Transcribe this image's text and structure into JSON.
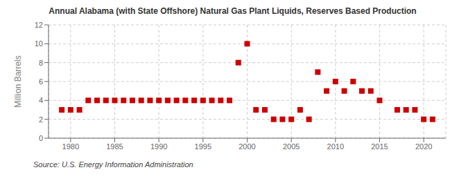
{
  "chart_data": {
    "type": "scatter",
    "title": "Annual Alabama (with State Offshore) Natural Gas Plant Liquids, Reserves Based Production",
    "y_label": "Million Barrels",
    "annotations": [
      "Source: U.S. Energy Information Administration"
    ],
    "x": [
      1979,
      1980,
      1981,
      1982,
      1983,
      1984,
      1985,
      1986,
      1987,
      1988,
      1989,
      1990,
      1991,
      1992,
      1993,
      1994,
      1995,
      1996,
      1997,
      1998,
      1999,
      2000,
      2001,
      2002,
      2003,
      2004,
      2005,
      2006,
      2007,
      2008,
      2009,
      2010,
      2011,
      2012,
      2013,
      2014,
      2015,
      2017,
      2018,
      2019,
      2020,
      2021
    ],
    "values": [
      3,
      3,
      3,
      4,
      4,
      4,
      4,
      4,
      4,
      4,
      4,
      4,
      4,
      4,
      4,
      4,
      4,
      4,
      4,
      4,
      8,
      10,
      3,
      3,
      2,
      2,
      2,
      3,
      2,
      7,
      5,
      6,
      5,
      6,
      5,
      5,
      4,
      3,
      3,
      3,
      2,
      2
    ],
    "color": "#cc0000",
    "marker": "square",
    "xlim": [
      1977.5,
      2022.5
    ],
    "xticks": [
      1980,
      1985,
      1990,
      1995,
      2000,
      2005,
      2010,
      2015,
      2020
    ],
    "ylim": [
      0,
      12
    ],
    "yticks": [
      0,
      2,
      4,
      6,
      8,
      10,
      12
    ],
    "grid": true
  }
}
